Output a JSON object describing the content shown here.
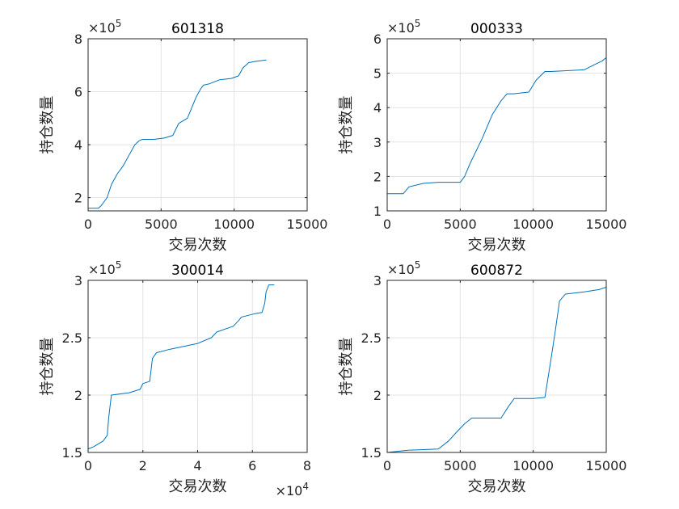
{
  "chart_data": [
    {
      "type": "line",
      "title": "601318",
      "xlabel": "交易次数",
      "ylabel": "持仓数量",
      "xlim": [
        0,
        15000
      ],
      "ylim": [
        1.5,
        8
      ],
      "xticks": [
        0,
        5000,
        10000,
        15000
      ],
      "yticks": [
        2,
        4,
        6,
        8
      ],
      "xtick_labels": [
        "0",
        "5000",
        "10000",
        "15000"
      ],
      "ytick_labels": [
        "2",
        "4",
        "6",
        "8"
      ],
      "x_multiplier": "",
      "y_multiplier": "×10^5",
      "grid": true,
      "series": [
        {
          "color": "#0072BD",
          "x": [
            0,
            700,
            900,
            1300,
            1600,
            2000,
            2400,
            2800,
            3200,
            3500,
            3700,
            4500,
            5200,
            5800,
            6200,
            6500,
            6800,
            7100,
            7400,
            7700,
            7900,
            8300,
            9000,
            9800,
            10300,
            10600,
            11000,
            11500,
            12200
          ],
          "y": [
            1.6,
            1.6,
            1.7,
            2.0,
            2.5,
            2.9,
            3.2,
            3.6,
            4.0,
            4.15,
            4.2,
            4.2,
            4.25,
            4.35,
            4.8,
            4.9,
            5.0,
            5.4,
            5.8,
            6.1,
            6.25,
            6.3,
            6.45,
            6.5,
            6.6,
            6.9,
            7.1,
            7.15,
            7.2
          ]
        }
      ]
    },
    {
      "type": "line",
      "title": "000333",
      "xlabel": "交易次数",
      "ylabel": "持仓数量",
      "xlim": [
        0,
        15000
      ],
      "ylim": [
        1,
        6
      ],
      "xticks": [
        0,
        5000,
        10000,
        15000
      ],
      "yticks": [
        1,
        2,
        3,
        4,
        5,
        6
      ],
      "xtick_labels": [
        "0",
        "5000",
        "10000",
        "15000"
      ],
      "ytick_labels": [
        "1",
        "2",
        "3",
        "4",
        "5",
        "6"
      ],
      "x_multiplier": "",
      "y_multiplier": "×10^5",
      "grid": true,
      "series": [
        {
          "color": "#0072BD",
          "x": [
            0,
            1100,
            1500,
            2500,
            3500,
            5000,
            5300,
            5700,
            6500,
            7200,
            7800,
            8200,
            8600,
            9700,
            10200,
            10800,
            11200,
            13500,
            14200,
            14700,
            15000
          ],
          "y": [
            1.5,
            1.5,
            1.7,
            1.8,
            1.83,
            1.83,
            2.0,
            2.4,
            3.1,
            3.8,
            4.2,
            4.4,
            4.4,
            4.45,
            4.8,
            5.05,
            5.05,
            5.1,
            5.25,
            5.35,
            5.45
          ]
        }
      ]
    },
    {
      "type": "line",
      "title": "300014",
      "xlabel": "交易次数",
      "ylabel": "持仓数量",
      "xlim": [
        0,
        8
      ],
      "ylim": [
        1.5,
        3
      ],
      "xticks": [
        0,
        2,
        4,
        6,
        8
      ],
      "yticks": [
        1.5,
        2,
        2.5,
        3
      ],
      "xtick_labels": [
        "0",
        "2",
        "4",
        "6",
        "8"
      ],
      "ytick_labels": [
        "1.5",
        "2",
        "2.5",
        "3"
      ],
      "x_multiplier": "×10^4",
      "y_multiplier": "×10^5",
      "grid": true,
      "series": [
        {
          "color": "#0072BD",
          "x": [
            0,
            0.2,
            0.55,
            0.7,
            0.75,
            0.85,
            1.5,
            1.9,
            2.0,
            2.25,
            2.35,
            2.5,
            3.0,
            4.0,
            4.5,
            4.7,
            5.3,
            5.5,
            5.6,
            6.1,
            6.35,
            6.45,
            6.5,
            6.6,
            6.8
          ],
          "y": [
            1.53,
            1.55,
            1.6,
            1.65,
            1.8,
            2.0,
            2.02,
            2.05,
            2.1,
            2.12,
            2.32,
            2.37,
            2.4,
            2.45,
            2.5,
            2.55,
            2.6,
            2.65,
            2.68,
            2.71,
            2.72,
            2.8,
            2.9,
            2.96,
            2.96
          ]
        }
      ]
    },
    {
      "type": "line",
      "title": "600872",
      "xlabel": "交易次数",
      "ylabel": "持仓数量",
      "xlim": [
        0,
        15000
      ],
      "ylim": [
        1.5,
        3
      ],
      "xticks": [
        0,
        5000,
        10000,
        15000
      ],
      "yticks": [
        1.5,
        2,
        2.5,
        3
      ],
      "xtick_labels": [
        "0",
        "5000",
        "10000",
        "15000"
      ],
      "ytick_labels": [
        "1.5",
        "2",
        "2.5",
        "3"
      ],
      "x_multiplier": "",
      "y_multiplier": "×10^5",
      "grid": true,
      "series": [
        {
          "color": "#0072BD",
          "x": [
            0,
            1500,
            3500,
            4200,
            4700,
            5300,
            5800,
            6500,
            7800,
            8300,
            8700,
            10000,
            10800,
            11200,
            11500,
            11800,
            12000,
            12200,
            13500,
            14500,
            15000
          ],
          "y": [
            1.5,
            1.52,
            1.53,
            1.6,
            1.67,
            1.75,
            1.8,
            1.8,
            1.8,
            1.9,
            1.97,
            1.97,
            1.98,
            2.3,
            2.55,
            2.82,
            2.85,
            2.88,
            2.9,
            2.92,
            2.94
          ]
        }
      ]
    }
  ]
}
